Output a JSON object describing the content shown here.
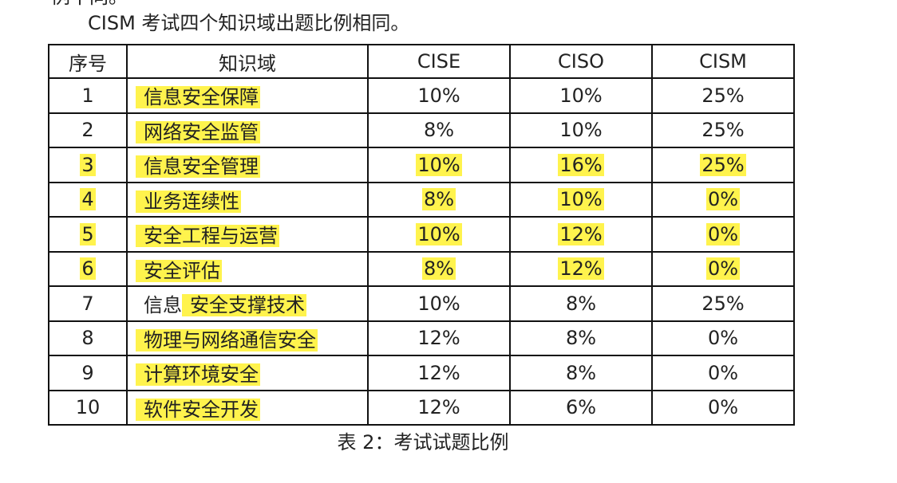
{
  "cut_text": "例不同。",
  "intro": "CISM 考试四个知识域出题比例相同。",
  "headers": {
    "no": "序号",
    "domain": "知识域",
    "cise": "CISE",
    "ciso": "CISO",
    "cism": "CISM"
  },
  "rows": [
    {
      "no": "1",
      "domain": "信息安全保障",
      "cise": "10%",
      "ciso": "10%",
      "cism": "25%"
    },
    {
      "no": "2",
      "domain": "网络安全监管",
      "cise": "8%",
      "ciso": "10%",
      "cism": "25%"
    },
    {
      "no": "3",
      "domain": "信息安全管理",
      "cise": "10%",
      "ciso": "16%",
      "cism": "25%"
    },
    {
      "no": "4",
      "domain": "业务连续性",
      "cise": "8%",
      "ciso": "10%",
      "cism": "0%"
    },
    {
      "no": "5",
      "domain": "安全工程与运营",
      "cise": "10%",
      "ciso": "12%",
      "cism": "0%"
    },
    {
      "no": "6",
      "domain": "安全评估",
      "cise": "8%",
      "ciso": "12%",
      "cism": "0%"
    },
    {
      "no": "7",
      "domain_plain": "信息",
      "domain": "安全支撑技术",
      "cise": "10%",
      "ciso": "8%",
      "cism": "25%"
    },
    {
      "no": "8",
      "domain": "物理与网络通信安全",
      "cise": "12%",
      "ciso": "8%",
      "cism": "0%"
    },
    {
      "no": "9",
      "domain": "计算环境安全",
      "cise": "12%",
      "ciso": "8%",
      "cism": "0%"
    },
    {
      "no": "10",
      "domain": "软件安全开发",
      "cise": "12%",
      "ciso": "6%",
      "cism": "0%"
    }
  ],
  "caption": "表 2：考试试题比例",
  "highlight_color": "#fff34d"
}
